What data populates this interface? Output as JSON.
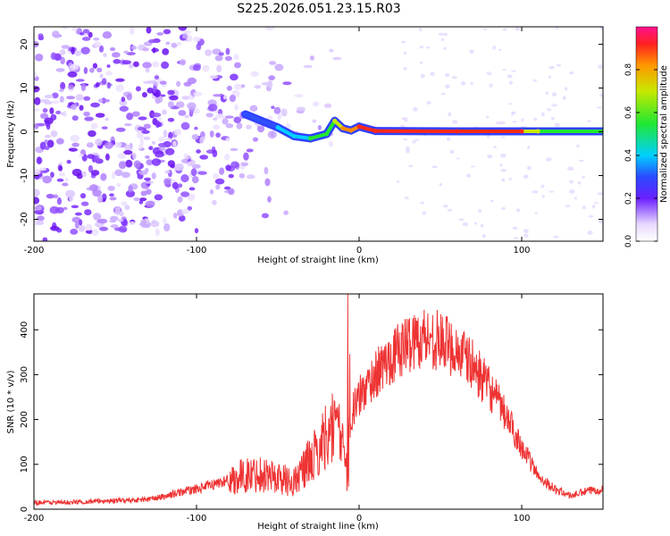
{
  "page_title": "S225.2026.051.23.15.R03",
  "chart_data": [
    {
      "id": "spectrogram",
      "type": "heatmap",
      "title": "S225.2026.051.23.15.R03",
      "xlabel": "Height of straight line (km)",
      "ylabel": "Frequency (Hz)",
      "xlim": [
        -200,
        150
      ],
      "ylim": [
        -25,
        24
      ],
      "xticks": [
        -200,
        -100,
        0,
        100
      ],
      "yticks": [
        -20,
        -10,
        0,
        10,
        20
      ],
      "colorbar": {
        "label": "Normalized spectral amplitude",
        "range": [
          0,
          1
        ],
        "ticks": [
          0.0,
          0.2,
          0.4,
          0.6,
          0.8
        ]
      },
      "carrier_track": {
        "description": "strong narrow signal near 0 Hz",
        "points": [
          {
            "x": -70,
            "f": 4,
            "amp": 0.35
          },
          {
            "x": -50,
            "f": 1,
            "amp": 0.4
          },
          {
            "x": -40,
            "f": -1,
            "amp": 0.45
          },
          {
            "x": -30,
            "f": -1.5,
            "amp": 0.5
          },
          {
            "x": -20,
            "f": -0.5,
            "amp": 0.55
          },
          {
            "x": -15,
            "f": 2.5,
            "amp": 0.6
          },
          {
            "x": -10,
            "f": 0.8,
            "amp": 0.8
          },
          {
            "x": -5,
            "f": 0.3,
            "amp": 0.85
          },
          {
            "x": 0,
            "f": 1.2,
            "amp": 0.9
          },
          {
            "x": 10,
            "f": 0.2,
            "amp": 0.95
          },
          {
            "x": 60,
            "f": 0.1,
            "amp": 1.0
          },
          {
            "x": 100,
            "f": 0.1,
            "amp": 0.95
          },
          {
            "x": 110,
            "f": 0.1,
            "amp": 0.6
          },
          {
            "x": 150,
            "f": 0.1,
            "amp": 0.5
          }
        ]
      },
      "noise_region": {
        "x": [
          -200,
          -25
        ],
        "f": [
          -25,
          24
        ]
      }
    },
    {
      "id": "snr",
      "type": "line",
      "xlabel": "Height of straight line (km)",
      "ylabel": "SNR (10 * v/v)",
      "xlim": [
        -200,
        150
      ],
      "ylim": [
        0,
        480
      ],
      "xticks": [
        -200,
        -100,
        0,
        100
      ],
      "yticks": [
        0,
        100,
        200,
        300,
        400
      ],
      "series": [
        {
          "name": "SNR",
          "color": "#ee3333",
          "x": [
            -200,
            -180,
            -160,
            -140,
            -130,
            -120,
            -110,
            -100,
            -90,
            -80,
            -70,
            -60,
            -50,
            -40,
            -30,
            -25,
            -20,
            -15,
            -10,
            -8,
            -5,
            0,
            10,
            20,
            30,
            40,
            50,
            60,
            70,
            80,
            90,
            100,
            110,
            120,
            130,
            140,
            150
          ],
          "y": [
            15,
            15,
            18,
            20,
            22,
            28,
            38,
            45,
            55,
            65,
            75,
            80,
            70,
            60,
            110,
            130,
            170,
            190,
            140,
            100,
            210,
            250,
            300,
            340,
            370,
            385,
            375,
            355,
            320,
            270,
            210,
            140,
            75,
            45,
            30,
            40,
            45
          ]
        }
      ],
      "annotations": [
        {
          "x": -7,
          "y": 480,
          "text": "spike"
        }
      ]
    }
  ],
  "colors": {
    "accent": "#ee3333",
    "carrier": "#ff2222",
    "noise": "#7722ff"
  }
}
